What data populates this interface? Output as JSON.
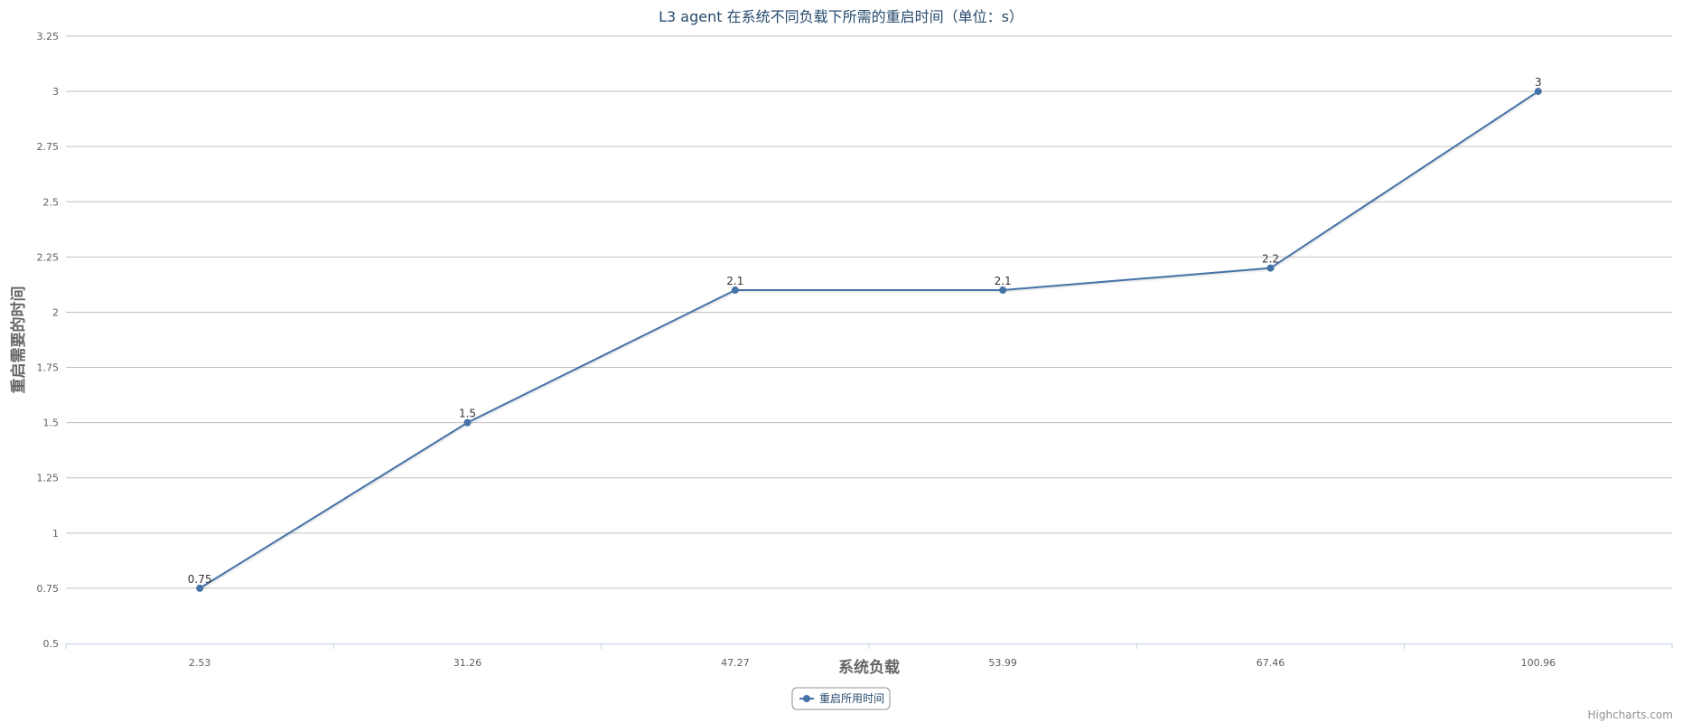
{
  "chart_data": {
    "type": "line",
    "title": "L3 agent 在系统不同负载下所需的重启时间（单位：s）",
    "xlabel": "系统负载",
    "ylabel": "重启需要的时间",
    "categories": [
      "2.53",
      "31.26",
      "47.27",
      "53.99",
      "67.46",
      "100.96"
    ],
    "series": [
      {
        "name": "重启所用时间",
        "values": [
          0.75,
          1.5,
          2.1,
          2.1,
          2.2,
          3
        ],
        "data_labels": [
          "0.75",
          "1.5",
          "2.1",
          "2.1",
          "2.2",
          "3"
        ]
      }
    ],
    "ylim": [
      0.5,
      3.25
    ],
    "yticks": [
      "0.5",
      "0.75",
      "1",
      "1.25",
      "1.5",
      "1.75",
      "2",
      "2.25",
      "2.5",
      "2.75",
      "3",
      "3.25"
    ],
    "grid": true,
    "legend_position": "bottom-center"
  },
  "colors": {
    "series": "#4572a7",
    "title": "#274b6d",
    "grid": "#c0c0c0",
    "axis": "#c0d0e0"
  },
  "credits": "Highcharts.com"
}
